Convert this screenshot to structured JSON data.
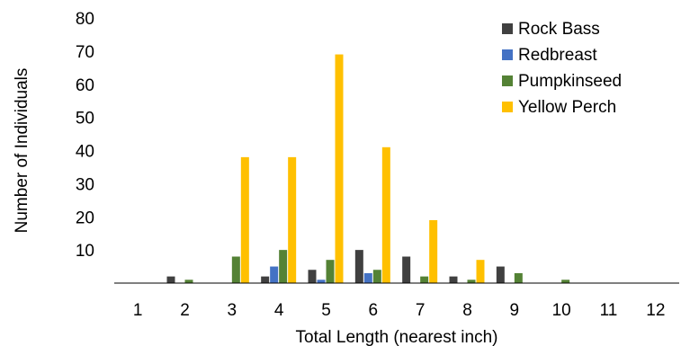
{
  "chart_data": {
    "type": "bar",
    "title": "",
    "xlabel": "Total Length (nearest inch)",
    "ylabel": "Number of Individuals",
    "ylim": [
      0,
      80
    ],
    "yticks": [
      10,
      20,
      30,
      40,
      50,
      60,
      70,
      80
    ],
    "categories": [
      "1",
      "2",
      "3",
      "4",
      "5",
      "6",
      "7",
      "8",
      "9",
      "10",
      "11",
      "12"
    ],
    "legend_position": "top-right",
    "grid": false,
    "series": [
      {
        "name": "Rock Bass",
        "color": "#404040",
        "values": [
          0,
          2,
          0,
          2,
          4,
          10,
          8,
          2,
          5,
          0,
          0,
          0
        ]
      },
      {
        "name": "Redbreast",
        "color": "#4472c4",
        "values": [
          0,
          0,
          0,
          5,
          1,
          3,
          0,
          0,
          0,
          0,
          0,
          0
        ]
      },
      {
        "name": "Pumpkinseed",
        "color": "#548235",
        "values": [
          0,
          1,
          8,
          10,
          7,
          4,
          2,
          1,
          3,
          1,
          0,
          0
        ]
      },
      {
        "name": "Yellow Perch",
        "color": "#ffc000",
        "values": [
          0,
          0,
          38,
          38,
          69,
          41,
          19,
          7,
          0,
          0,
          0,
          0
        ]
      }
    ]
  }
}
